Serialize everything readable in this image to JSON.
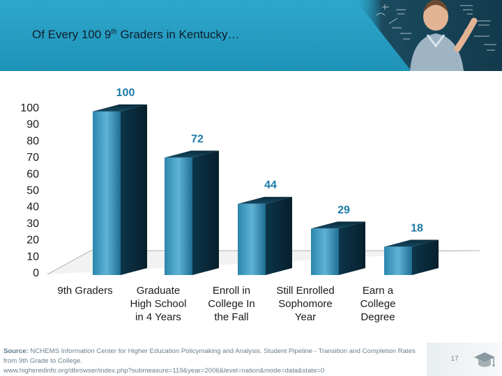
{
  "header": {
    "title_pre": "Of Every 100 9",
    "title_sup": "th",
    "title_post": " Graders in Kentucky…"
  },
  "colors": {
    "header_band": "#1f92b8",
    "bar_front": "#2a7fa4",
    "bar_dark": "#0c3549",
    "value_label": "#1b7aa6",
    "axis_text": "#1a1a1a"
  },
  "chart_data": {
    "type": "bar",
    "title": "",
    "xlabel": "",
    "ylabel": "",
    "ylim": [
      0,
      100
    ],
    "yticks": [
      0,
      10,
      20,
      30,
      40,
      50,
      60,
      70,
      80,
      90,
      100
    ],
    "grid": false,
    "categories": [
      [
        "9th Graders"
      ],
      [
        "Graduate",
        "High School",
        "in 4 Years"
      ],
      [
        "Enroll in",
        "College In",
        "the Fall"
      ],
      [
        "Still Enrolled",
        "Sophomore",
        "Year"
      ],
      [
        "Earn a",
        "College",
        "Degree"
      ]
    ],
    "values": [
      100,
      72,
      44,
      29,
      18
    ],
    "data_labels": [
      "100",
      "72",
      "44",
      "29",
      "18"
    ]
  },
  "footer": {
    "source_label": "Source:",
    "source_text": " NCHEMS Information Center for Higher Education Policymaking and Analysis. Student Pipeline - Transition and Completion Rates from 9th Grade to College.",
    "source_url": "www.higheredinfo.org/dbrowser/index.php?submeasure=119&year=2006&level=nation&mode=data&state=0",
    "page_number": "17",
    "icon": "graduation-cap-icon"
  }
}
